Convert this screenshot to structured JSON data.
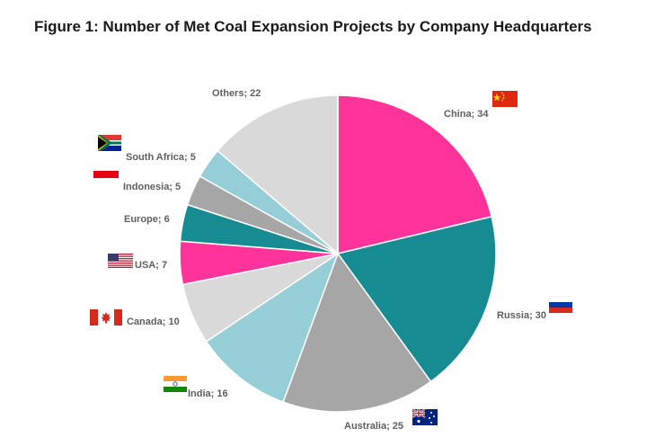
{
  "figure": {
    "title": "Figure 1: Number of Met Coal Expansion Projects by Company Headquarters"
  },
  "chart_data": {
    "type": "pie",
    "title": "Figure 1: Number of Met Coal Expansion Projects by Company Headquarters",
    "label_separator": "; ",
    "slices": [
      {
        "label": "China",
        "value": 34,
        "color": "#FF3399",
        "flag": "china-flag-icon"
      },
      {
        "label": "Russia",
        "value": 30,
        "color": "#168B91",
        "flag": "russia-flag-icon"
      },
      {
        "label": "Australia",
        "value": 25,
        "color": "#A6A6A6",
        "flag": "australia-flag-icon"
      },
      {
        "label": "India",
        "value": 16,
        "color": "#96CED8",
        "flag": "india-flag-icon"
      },
      {
        "label": "Canada",
        "value": 10,
        "color": "#D9D9D9",
        "flag": "canada-flag-icon"
      },
      {
        "label": "USA",
        "value": 7,
        "color": "#FF3399",
        "flag": "usa-flag-icon"
      },
      {
        "label": "Europe",
        "value": 6,
        "color": "#168B91",
        "flag": ""
      },
      {
        "label": "Indonesia",
        "value": 5,
        "color": "#A6A6A6",
        "flag": "indonesia-flag-icon"
      },
      {
        "label": "South Africa",
        "value": 5,
        "color": "#96CED8",
        "flag": "south-africa-flag-icon"
      },
      {
        "label": "Others",
        "value": 22,
        "color": "#D9D9D9",
        "flag": ""
      }
    ]
  }
}
